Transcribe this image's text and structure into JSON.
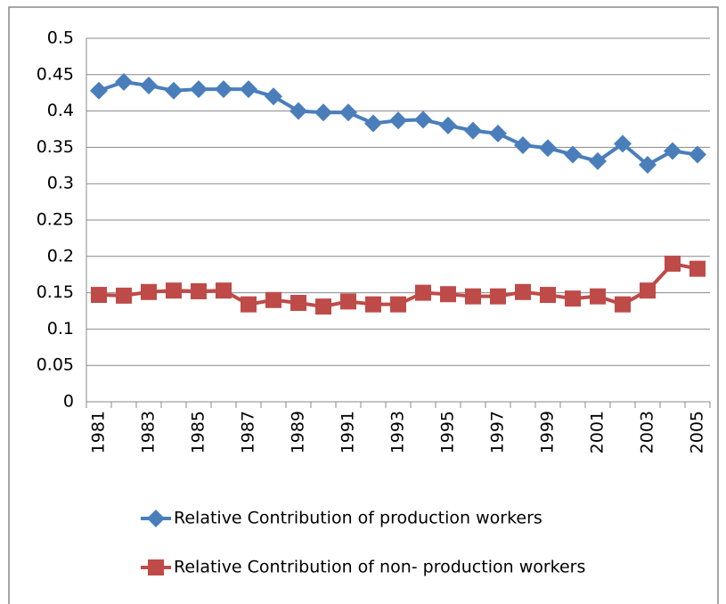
{
  "chart_data": {
    "type": "line",
    "categories": [
      "1981",
      null,
      "1983",
      null,
      "1985",
      null,
      "1987",
      null,
      "1989",
      null,
      "1991",
      null,
      "1993",
      null,
      "1995",
      null,
      "1997",
      null,
      "1999",
      null,
      "2001",
      null,
      "2003",
      null,
      "2005"
    ],
    "series": [
      {
        "name": "Relative Contribution of production workers",
        "color": "#4a7ebb",
        "marker": "diamond",
        "values": [
          0.428,
          0.44,
          0.435,
          0.428,
          0.43,
          0.43,
          0.43,
          0.42,
          0.4,
          0.398,
          0.398,
          0.383,
          0.387,
          0.388,
          0.38,
          0.373,
          0.369,
          0.353,
          0.349,
          0.34,
          0.331,
          0.355,
          0.326,
          0.345,
          0.34
        ]
      },
      {
        "name": "Relative Contribution of non- production workers",
        "color": "#be4b48",
        "marker": "square",
        "values": [
          0.147,
          0.146,
          0.151,
          0.153,
          0.152,
          0.153,
          0.134,
          0.14,
          0.136,
          0.131,
          0.138,
          0.134,
          0.134,
          0.15,
          0.148,
          0.145,
          0.145,
          0.151,
          0.147,
          0.142,
          0.145,
          0.134,
          0.153,
          0.19,
          0.183
        ]
      }
    ],
    "ylim": [
      0,
      0.5
    ],
    "yticks": [
      0,
      0.05,
      0.1,
      0.15,
      0.2,
      0.25,
      0.3,
      0.35,
      0.4,
      0.45,
      0.5
    ],
    "grid": true,
    "legend": "bottom"
  }
}
